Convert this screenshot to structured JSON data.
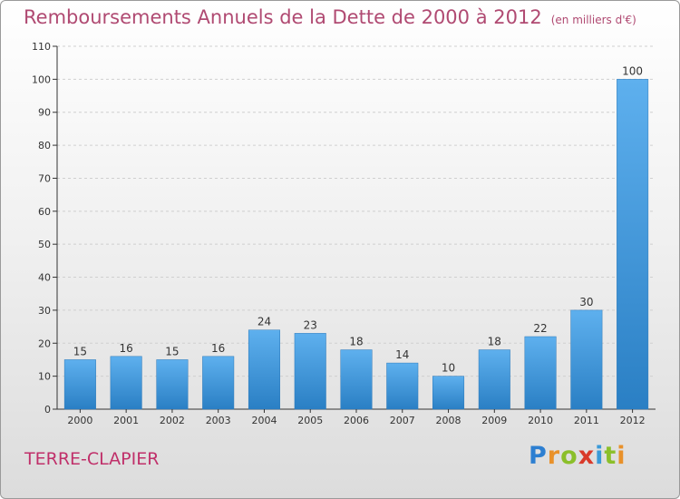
{
  "title": "Remboursements Annuels de la Dette de 2000 à 2012",
  "title_unit": "(en milliers d'€)",
  "city": "TERRE-CLAPIER",
  "logo": {
    "letters": [
      "P",
      "r",
      "o",
      "x",
      "i",
      "t",
      "i"
    ],
    "colors": [
      "#2d7fd1",
      "#e9912a",
      "#8bbf2a",
      "#d93a2a",
      "#3a9ad8",
      "#8bbf2a",
      "#e9912a"
    ]
  },
  "colors": {
    "bar_top": "#5eb0ee",
    "bar_bottom": "#2a7fc4",
    "axis": "#333333",
    "grid": "#cfcfcf",
    "title": "#b04a72"
  },
  "chart_data": {
    "type": "bar",
    "categories": [
      "2000",
      "2001",
      "2002",
      "2003",
      "2004",
      "2005",
      "2006",
      "2007",
      "2008",
      "2009",
      "2010",
      "2011",
      "2012"
    ],
    "values": [
      15,
      16,
      15,
      16,
      24,
      23,
      18,
      14,
      10,
      18,
      22,
      30,
      100
    ],
    "data_labels": [
      "15",
      "16",
      "15",
      "16",
      "24",
      "23",
      "18",
      "14",
      "10",
      "18",
      "22",
      "30",
      "100"
    ],
    "y_ticks": [
      "0",
      "10",
      "20",
      "30",
      "40",
      "50",
      "60",
      "70",
      "80",
      "90",
      "100",
      "110"
    ],
    "ylim": [
      0,
      110
    ],
    "title": "Remboursements Annuels de la Dette de 2000 à 2012",
    "subtitle": "(en milliers d'€)",
    "xlabel": "",
    "ylabel": "",
    "grid": true,
    "legend": "none"
  }
}
